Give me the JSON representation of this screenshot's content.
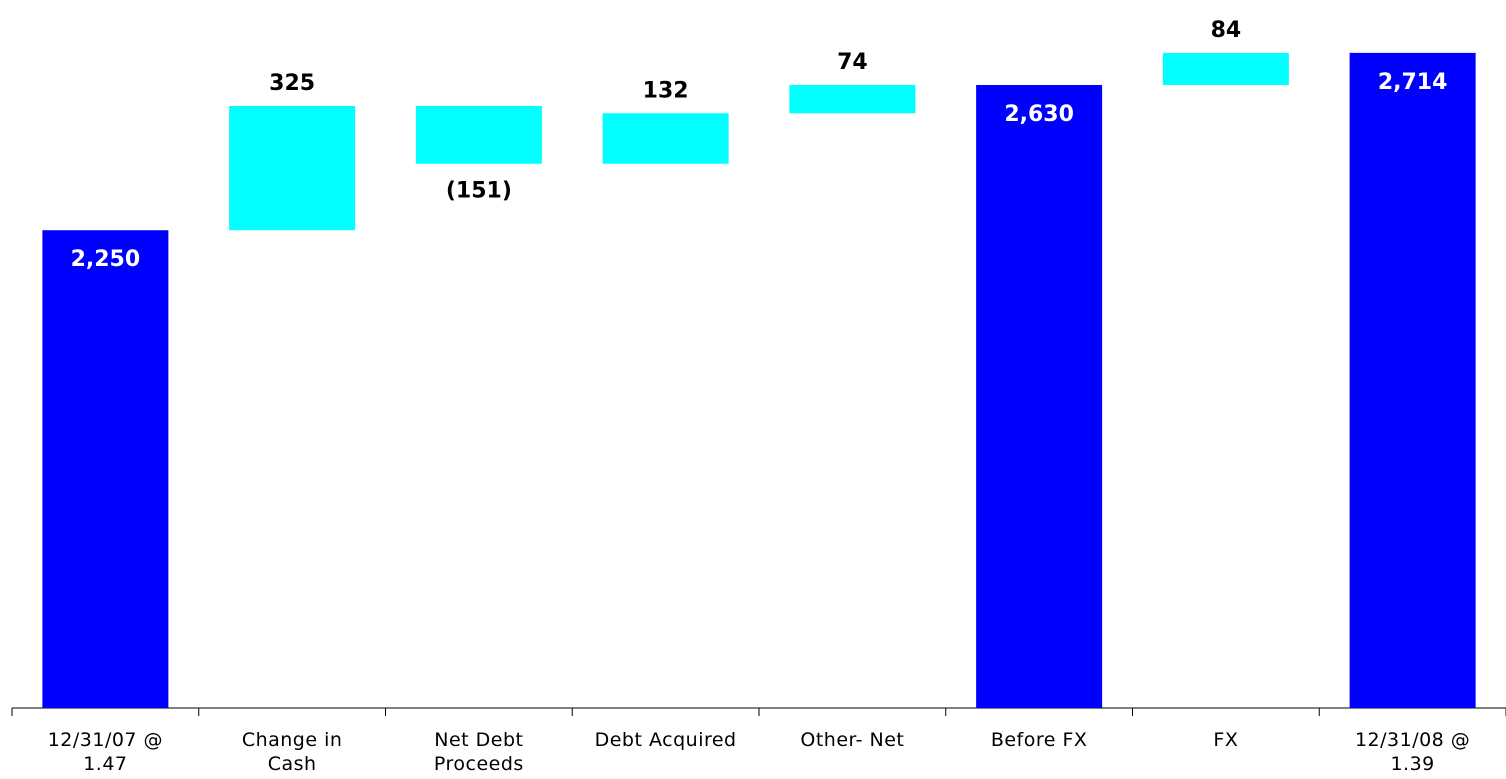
{
  "chart_data": {
    "type": "waterfall",
    "categories": [
      "12/31/07 @ 1.47",
      "Change in Cash",
      "Net Debt Proceeds",
      "Debt Acquired",
      "Other- Net",
      "Before FX",
      "FX",
      "12/31/08 @ 1.39"
    ],
    "values": [
      2250,
      325,
      -151,
      132,
      74,
      2630,
      84,
      2714
    ],
    "value_labels": [
      "2,250",
      "325",
      "(151)",
      "132",
      "74",
      "2,630",
      "84",
      "2,714"
    ],
    "totals": [
      true,
      false,
      false,
      false,
      false,
      true,
      false,
      true
    ],
    "total_color": "#0000ff",
    "change_color": "#00ffff",
    "ylim": [
      1000,
      2800
    ]
  }
}
